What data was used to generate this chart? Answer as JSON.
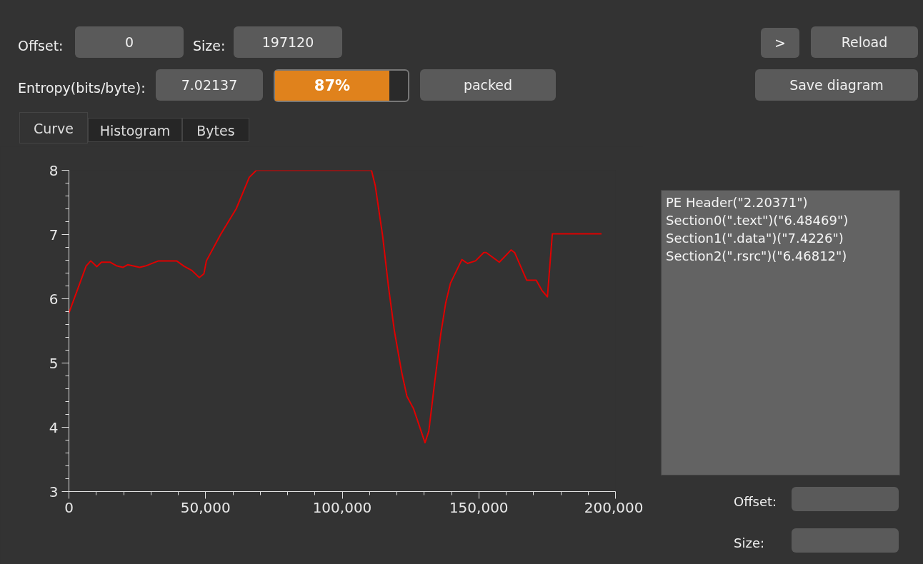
{
  "chart_data": {
    "type": "line",
    "x": [
      0,
      6300,
      8000,
      10200,
      11900,
      15000,
      17600,
      19800,
      21500,
      25900,
      28000,
      29800,
      32800,
      39400,
      42000,
      45000,
      47700,
      49400,
      50300,
      55500,
      61200,
      66000,
      68600,
      110700,
      112100,
      114800,
      116900,
      119100,
      121700,
      123700,
      126100,
      130300,
      131700,
      133900,
      136100,
      137900,
      139600,
      143800,
      145900,
      148800,
      151800,
      152700,
      157500,
      161800,
      163100,
      167500,
      171000,
      173100,
      175100,
      176900,
      194900
    ],
    "series": [
      {
        "color": "#e00000",
        "values": [
          5.78,
          6.51,
          6.59,
          6.5,
          6.57,
          6.57,
          6.51,
          6.49,
          6.53,
          6.49,
          6.51,
          6.54,
          6.59,
          6.59,
          6.51,
          6.44,
          6.33,
          6.39,
          6.59,
          7.0,
          7.4,
          7.89,
          8.0,
          8.0,
          7.76,
          6.98,
          6.2,
          5.5,
          4.87,
          4.48,
          4.29,
          3.76,
          3.94,
          4.72,
          5.46,
          5.94,
          6.24,
          6.61,
          6.55,
          6.59,
          6.72,
          6.72,
          6.57,
          6.76,
          6.72,
          6.29,
          6.29,
          6.13,
          6.03,
          7.01,
          7.01
        ]
      }
    ],
    "xlim": [
      0,
      200000
    ],
    "ylim": [
      3,
      8
    ],
    "xticks": [
      {
        "value": 0,
        "label": "0"
      },
      {
        "value": 10000,
        "label": null
      },
      {
        "value": 20000,
        "label": null
      },
      {
        "value": 30000,
        "label": null
      },
      {
        "value": 40000,
        "label": null
      },
      {
        "value": 50000,
        "label": "50,000"
      },
      {
        "value": 60000,
        "label": null
      },
      {
        "value": 70000,
        "label": null
      },
      {
        "value": 80000,
        "label": null
      },
      {
        "value": 90000,
        "label": null
      },
      {
        "value": 100000,
        "label": "100,000"
      },
      {
        "value": 110000,
        "label": null
      },
      {
        "value": 120000,
        "label": null
      },
      {
        "value": 130000,
        "label": null
      },
      {
        "value": 140000,
        "label": null
      },
      {
        "value": 150000,
        "label": "150,000"
      },
      {
        "value": 160000,
        "label": null
      },
      {
        "value": 170000,
        "label": null
      },
      {
        "value": 180000,
        "label": null
      },
      {
        "value": 190000,
        "label": null
      },
      {
        "value": 200000,
        "label": "200,000"
      }
    ],
    "yticks": [
      3,
      {
        "value": 3.2,
        "label": null
      },
      {
        "value": 3.4,
        "label": null
      },
      {
        "value": 3.6,
        "label": null
      },
      {
        "value": 3.8,
        "label": null
      },
      4,
      {
        "value": 4.2,
        "label": null
      },
      {
        "value": 4.4,
        "label": null
      },
      {
        "value": 4.6,
        "label": null
      },
      {
        "value": 4.8,
        "label": null
      },
      5,
      {
        "value": 5.2,
        "label": null
      },
      {
        "value": 5.4,
        "label": null
      },
      {
        "value": 5.6,
        "label": null
      },
      {
        "value": 5.8,
        "label": null
      },
      6,
      {
        "value": 6.2,
        "label": null
      },
      {
        "value": 6.4,
        "label": null
      },
      {
        "value": 6.6,
        "label": null
      },
      {
        "value": 6.8,
        "label": null
      },
      7,
      {
        "value": 7.2,
        "label": null
      },
      {
        "value": 7.4,
        "label": null
      },
      {
        "value": 7.6,
        "label": null
      },
      {
        "value": 7.8,
        "label": null
      },
      8
    ],
    "grid": false,
    "marker": "none",
    "line_style": "solid",
    "annotations": [
      "Offset:",
      "0",
      "Size:",
      "197120",
      "Entropy(bits/byte):",
      "7.02137",
      "87%",
      "packed",
      ">",
      "Reload",
      "Save diagram",
      "Curve",
      "Histogram",
      "Bytes",
      "PE Header(\"2.20371\")",
      "Section0(\".text\")(\"6.48469\")",
      "Section1(\".data\")(\"7.4226\")",
      "Section2(\".rsrc\")(\"6.46812\")",
      "Offset:",
      "Size:"
    ]
  }
}
